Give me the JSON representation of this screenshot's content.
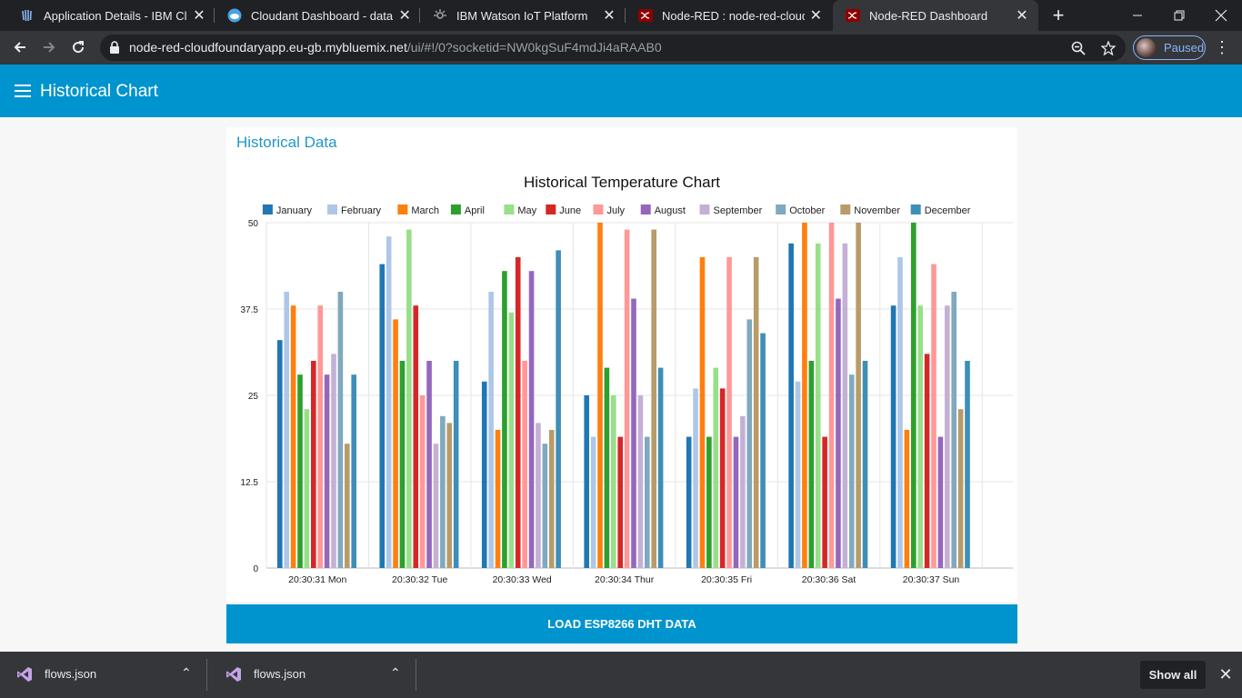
{
  "browser": {
    "tabs": [
      {
        "title": "Application Details - IBM Cloud",
        "icon": "ibm-cloud-icon"
      },
      {
        "title": "Cloudant Dashboard - database",
        "icon": "cloudant-icon"
      },
      {
        "title": "IBM Watson IoT Platform",
        "icon": "watson-iot-icon"
      },
      {
        "title": "Node-RED : node-red-cloudfoundaryapp",
        "icon": "node-red-icon"
      },
      {
        "title": "Node-RED Dashboard",
        "icon": "node-red-icon"
      }
    ],
    "url_host": "node-red-cloudfoundaryapp.eu-gb.mybluemix.net",
    "url_path": "/ui/#!/0?socketid=NW0kgSuF4mdJi4aRAAB0",
    "profile_label": "Paused"
  },
  "app": {
    "title": "Historical Chart",
    "card_title": "Historical Data",
    "button_label": "LOAD ESP8266 DHT DATA"
  },
  "chart_data": {
    "type": "bar",
    "title": "Historical Temperature Chart",
    "xlabel": "",
    "ylabel": "",
    "ylim": [
      0,
      50
    ],
    "yticks": [
      "0",
      "12.5",
      "25",
      "37.5",
      "50"
    ],
    "grid": true,
    "legend_position": "top",
    "categories": [
      "20:30:31 Mon",
      "20:30:32 Tue",
      "20:30:33 Wed",
      "20:30:34 Thur",
      "20:30:35 Fri",
      "20:30:36 Sat",
      "20:30:37 Sun"
    ],
    "series": [
      {
        "name": "January",
        "color": "#1f77b4",
        "values": [
          33,
          44,
          27,
          25,
          19,
          47,
          38
        ]
      },
      {
        "name": "February",
        "color": "#aec7e8",
        "values": [
          40,
          48,
          40,
          19,
          26,
          27,
          45
        ]
      },
      {
        "name": "March",
        "color": "#ff7f0e",
        "values": [
          38,
          36,
          20,
          50,
          45,
          50,
          20
        ]
      },
      {
        "name": "April",
        "color": "#2ca02c",
        "values": [
          28,
          30,
          43,
          29,
          19,
          30,
          50
        ]
      },
      {
        "name": "May",
        "color": "#98df8a",
        "values": [
          23,
          49,
          37,
          25,
          29,
          47,
          38
        ]
      },
      {
        "name": "June",
        "color": "#d62728",
        "values": [
          30,
          38,
          45,
          19,
          26,
          19,
          31
        ]
      },
      {
        "name": "July",
        "color": "#ff9896",
        "values": [
          38,
          25,
          30,
          49,
          45,
          50,
          44
        ]
      },
      {
        "name": "August",
        "color": "#9467bd",
        "values": [
          28,
          30,
          43,
          39,
          19,
          39,
          19
        ]
      },
      {
        "name": "September",
        "color": "#c5b0d5",
        "values": [
          31,
          18,
          21,
          25,
          22,
          47,
          38
        ]
      },
      {
        "name": "October",
        "color": "#7fa9bf",
        "values": [
          40,
          22,
          18,
          19,
          36,
          28,
          40
        ]
      },
      {
        "name": "November",
        "color": "#b89b68",
        "values": [
          18,
          21,
          20,
          49,
          45,
          50,
          23
        ]
      },
      {
        "name": "December",
        "color": "#3d8eb9",
        "values": [
          28,
          30,
          46,
          29,
          34,
          30,
          30
        ]
      }
    ]
  },
  "downloads": [
    {
      "name": "flows.json"
    },
    {
      "name": "flows.json"
    }
  ],
  "downloads_show_all": "Show all"
}
